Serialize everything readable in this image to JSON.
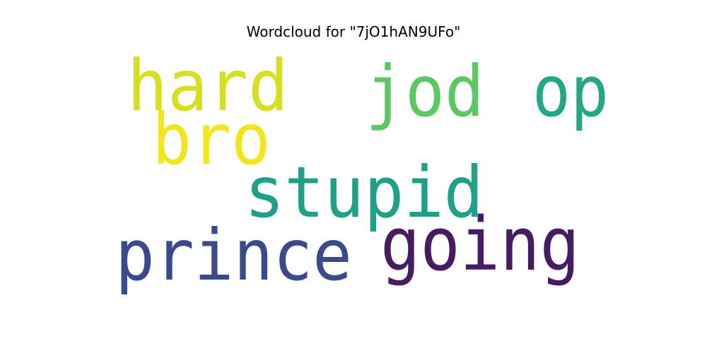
{
  "chart_data": {
    "type": "wordcloud",
    "title": "Wordcloud for \"7jO1hAN9UFo\"",
    "colormap": "viridis",
    "words": [
      {
        "text": "prince",
        "color": "#3b4a8b"
      },
      {
        "text": "going",
        "color": "#461b62"
      },
      {
        "text": "stupid",
        "color": "#21a089"
      },
      {
        "text": "hard",
        "color": "#d6e020"
      },
      {
        "text": "jod",
        "color": "#5cc864"
      },
      {
        "text": "op",
        "color": "#24a884"
      },
      {
        "text": "bro",
        "color": "#f2e51b"
      }
    ]
  }
}
